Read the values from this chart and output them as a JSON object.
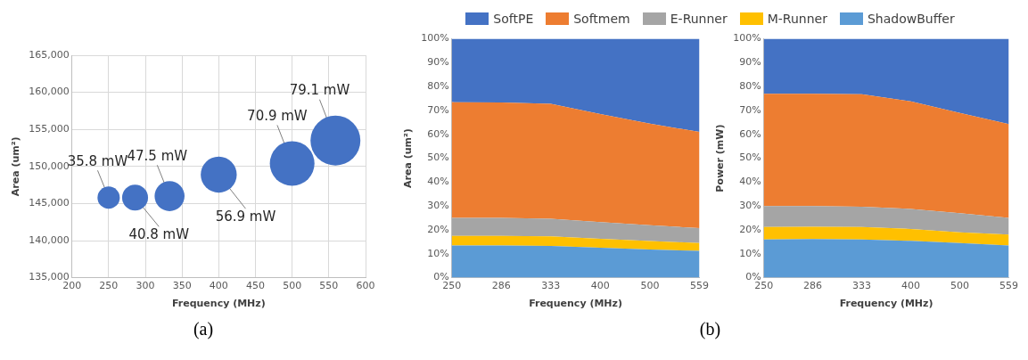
{
  "chart_data": [
    {
      "type": "bubble",
      "xlabel": "Frequency (MHz)",
      "ylabel": "Area (um²)",
      "x": [
        250,
        286,
        333,
        400,
        500,
        559
      ],
      "values": [
        145800,
        145800,
        146000,
        148900,
        150400,
        153500
      ],
      "sizes": [
        0.2,
        0.27,
        0.36,
        0.52,
        0.8,
        1
      ],
      "color": "#4472c4",
      "xlim": [
        200,
        600
      ],
      "xticks": [
        200,
        250,
        300,
        350,
        400,
        450,
        500,
        550,
        600
      ],
      "ylim": [
        135000,
        165000
      ],
      "yticks": [
        {
          "value": 135000,
          "label": "135,000"
        },
        {
          "value": 140000,
          "label": "140,000"
        },
        {
          "value": 145000,
          "label": "145,000"
        },
        {
          "value": 150000,
          "label": "150,000"
        },
        {
          "value": 155000,
          "label": "155,000"
        },
        {
          "value": 160000,
          "label": "160,000"
        },
        {
          "value": 165000,
          "label": "165,000"
        }
      ],
      "grid": true,
      "annotations": [
        "(a)",
        {
          "text": "35.8 mW",
          "x": 250,
          "y": 145800
        },
        {
          "text": "40.8 mW",
          "x": 286,
          "y": 145800
        },
        {
          "text": "47.5 mW",
          "x": 333,
          "y": 146000
        },
        {
          "text": "56.9 mW",
          "x": 400,
          "y": 148900
        },
        {
          "text": "70.9 mW",
          "x": 500,
          "y": 150400
        },
        {
          "text": "79.1 mW",
          "x": 559,
          "y": 153500
        }
      ]
    },
    {
      "type": "area",
      "stacked": true,
      "xlabel": "Frequency (MHz)",
      "ylabel": "Area (um²)",
      "categories": [
        "250",
        "286",
        "333",
        "400",
        "500",
        "559"
      ],
      "series": [
        {
          "name": "ShadowBuffer",
          "color": "#5b9bd5",
          "values": [
            13.5,
            13.5,
            13.3,
            12.5,
            11.8,
            11.2
          ]
        },
        {
          "name": "M-Runner",
          "color": "#ffc000",
          "values": [
            4,
            4,
            4,
            3.8,
            3.5,
            3.3
          ]
        },
        {
          "name": "E-Runner",
          "color": "#a5a5a5",
          "values": [
            7.5,
            7.5,
            7.4,
            7,
            6.7,
            6.2
          ]
        },
        {
          "name": "Softmem",
          "color": "#ed7d31",
          "values": [
            48.5,
            48.4,
            48.1,
            45.2,
            42.5,
            40.3
          ]
        },
        {
          "name": "SoftPE",
          "color": "#4472c4",
          "values": [
            26.5,
            26.6,
            27.2,
            31.5,
            35.5,
            39
          ]
        }
      ],
      "ylim": [
        0,
        100
      ],
      "yticks": [
        {
          "value": 0,
          "label": "0%"
        },
        {
          "value": 10,
          "label": "10%"
        },
        {
          "value": 20,
          "label": "20%"
        },
        {
          "value": 30,
          "label": "30%"
        },
        {
          "value": 40,
          "label": "40%"
        },
        {
          "value": 50,
          "label": "50%"
        },
        {
          "value": 60,
          "label": "60%"
        },
        {
          "value": 70,
          "label": "70%"
        },
        {
          "value": 80,
          "label": "80%"
        },
        {
          "value": 90,
          "label": "90%"
        },
        {
          "value": 100,
          "label": "100%"
        }
      ],
      "legend": "top",
      "annotations": [
        "(b)"
      ]
    },
    {
      "type": "area",
      "stacked": true,
      "xlabel": "Frequency (MHz)",
      "ylabel": "Power (mW)",
      "categories": [
        "250",
        "286",
        "333",
        "400",
        "500",
        "559"
      ],
      "series": [
        {
          "color": "#5b9bd5",
          "values": [
            16,
            16.2,
            16,
            15.4,
            14.5,
            13.5
          ]
        },
        {
          "color": "#ffc000",
          "values": [
            5.2,
            5.1,
            5.2,
            5,
            4.5,
            4.5
          ]
        },
        {
          "color": "#a5a5a5",
          "values": [
            8.8,
            8.7,
            8.5,
            8.4,
            8,
            7
          ]
        },
        {
          "color": "#ed7d31",
          "values": [
            47,
            47,
            47.1,
            45,
            42,
            39.3
          ]
        },
        {
          "color": "#4472c4",
          "values": [
            23,
            23,
            23.2,
            26.2,
            31,
            35.7
          ]
        }
      ],
      "ylim": [
        0,
        100
      ],
      "yticks": [
        {
          "value": 0,
          "label": "0%"
        },
        {
          "value": 10,
          "label": "10%"
        },
        {
          "value": 20,
          "label": "20%"
        },
        {
          "value": 30,
          "label": "30%"
        },
        {
          "value": 40,
          "label": "40%"
        },
        {
          "value": 50,
          "label": "50%"
        },
        {
          "value": 60,
          "label": "60%"
        },
        {
          "value": 70,
          "label": "70%"
        },
        {
          "value": 80,
          "label": "80%"
        },
        {
          "value": 90,
          "label": "90%"
        },
        {
          "value": 100,
          "label": "100%"
        }
      ]
    }
  ]
}
